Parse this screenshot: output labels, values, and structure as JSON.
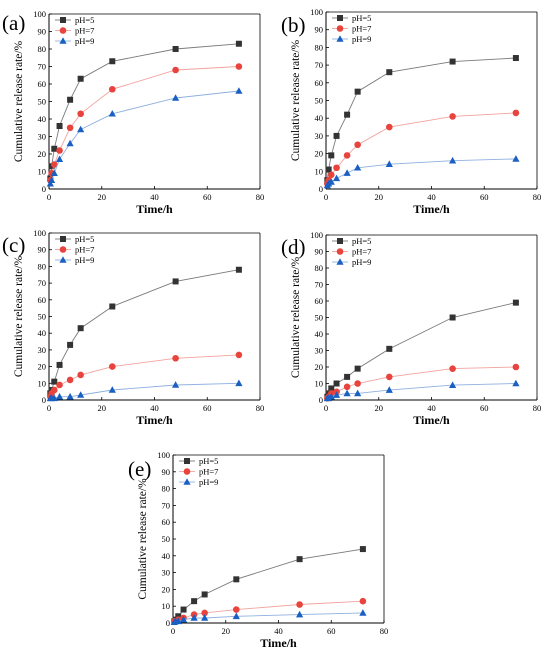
{
  "chart_data": [
    {
      "panel_label": "(a)",
      "type": "line",
      "xlabel": "Time/h",
      "ylabel": "Cumulative release rate/%",
      "xlim": [
        0,
        80
      ],
      "ylim": [
        0,
        100
      ],
      "xticks": [
        0,
        20,
        40,
        60,
        80
      ],
      "yticks": [
        0,
        10,
        20,
        30,
        40,
        50,
        60,
        70,
        80,
        90,
        100
      ],
      "grid": false,
      "legend_position": "top-left",
      "x": [
        0.5,
        1,
        2,
        4,
        8,
        12,
        24,
        48,
        72
      ],
      "series": [
        {
          "name": "pH=5",
          "marker": "square",
          "color": "#333333",
          "values": [
            6,
            13,
            23,
            36,
            51,
            63,
            73,
            80,
            83
          ]
        },
        {
          "name": "pH=7",
          "marker": "circle",
          "color": "#e8433c",
          "values": [
            5,
            9,
            14,
            22,
            35,
            43,
            57,
            68,
            70
          ]
        },
        {
          "name": "pH=9",
          "marker": "triangle",
          "color": "#1a5fc2",
          "values": [
            3,
            5,
            9,
            17,
            26,
            34,
            43,
            52,
            56
          ]
        }
      ]
    },
    {
      "panel_label": "(b)",
      "type": "line",
      "xlabel": "Time/h",
      "ylabel": "Cumulative release rate/%",
      "xlim": [
        0,
        80
      ],
      "ylim": [
        0,
        100
      ],
      "xticks": [
        0,
        20,
        40,
        60,
        80
      ],
      "yticks": [
        0,
        10,
        20,
        30,
        40,
        50,
        60,
        70,
        80,
        90,
        100
      ],
      "grid": false,
      "legend_position": "top-left",
      "x": [
        0.5,
        1,
        2,
        4,
        8,
        12,
        24,
        48,
        72
      ],
      "series": [
        {
          "name": "pH=5",
          "marker": "square",
          "color": "#333333",
          "values": [
            5,
            11,
            19,
            30,
            42,
            55,
            66,
            72,
            74
          ]
        },
        {
          "name": "pH=7",
          "marker": "circle",
          "color": "#e8433c",
          "values": [
            3,
            5,
            8,
            12,
            19,
            25,
            35,
            41,
            43
          ]
        },
        {
          "name": "pH=9",
          "marker": "triangle",
          "color": "#1a5fc2",
          "values": [
            2,
            3,
            4,
            6,
            9,
            12,
            14,
            16,
            17
          ]
        }
      ]
    },
    {
      "panel_label": "(c)",
      "type": "line",
      "xlabel": "Time/h",
      "ylabel": "Cumulative release rate/%",
      "xlim": [
        0,
        80
      ],
      "ylim": [
        0,
        100
      ],
      "xticks": [
        0,
        20,
        40,
        60,
        80
      ],
      "yticks": [
        0,
        10,
        20,
        30,
        40,
        50,
        60,
        70,
        80,
        90,
        100
      ],
      "grid": false,
      "legend_position": "top-left",
      "x": [
        0.5,
        1,
        2,
        4,
        8,
        12,
        24,
        48,
        72
      ],
      "series": [
        {
          "name": "pH=5",
          "marker": "square",
          "color": "#333333",
          "values": [
            4,
            6,
            11,
            21,
            33,
            43,
            56,
            71,
            78
          ]
        },
        {
          "name": "pH=7",
          "marker": "circle",
          "color": "#e8433c",
          "values": [
            2,
            4,
            6,
            9,
            12,
            15,
            20,
            25,
            27
          ]
        },
        {
          "name": "pH=9",
          "marker": "triangle",
          "color": "#1a5fc2",
          "values": [
            1,
            1,
            1,
            2,
            2,
            3,
            6,
            9,
            10
          ]
        }
      ]
    },
    {
      "panel_label": "(d)",
      "type": "line",
      "xlabel": "Time/h",
      "ylabel": "Cumulative release rate/%",
      "xlim": [
        0,
        80
      ],
      "ylim": [
        0,
        100
      ],
      "xticks": [
        0,
        20,
        40,
        60,
        80
      ],
      "yticks": [
        0,
        10,
        20,
        30,
        40,
        50,
        60,
        70,
        80,
        90,
        100
      ],
      "grid": false,
      "legend_position": "top-left",
      "x": [
        0.5,
        1,
        2,
        4,
        8,
        12,
        24,
        48,
        72
      ],
      "series": [
        {
          "name": "pH=5",
          "marker": "square",
          "color": "#333333",
          "values": [
            2,
            4,
            7,
            10,
            14,
            19,
            31,
            50,
            59
          ]
        },
        {
          "name": "pH=7",
          "marker": "circle",
          "color": "#e8433c",
          "values": [
            1,
            2,
            4,
            5,
            8,
            10,
            14,
            19,
            20
          ]
        },
        {
          "name": "pH=9",
          "marker": "triangle",
          "color": "#1a5fc2",
          "values": [
            1,
            1,
            2,
            3,
            4,
            4,
            6,
            9,
            10
          ]
        }
      ]
    },
    {
      "panel_label": "(e)",
      "type": "line",
      "xlabel": "Time/h",
      "ylabel": "Cumulative release rate/%",
      "xlim": [
        0,
        80
      ],
      "ylim": [
        0,
        100
      ],
      "xticks": [
        0,
        20,
        40,
        60,
        80
      ],
      "yticks": [
        0,
        10,
        20,
        30,
        40,
        50,
        60,
        70,
        80,
        90,
        100
      ],
      "grid": false,
      "legend_position": "top-left",
      "x": [
        0.5,
        1,
        2,
        4,
        8,
        12,
        24,
        48,
        72
      ],
      "series": [
        {
          "name": "pH=5",
          "marker": "square",
          "color": "#333333",
          "values": [
            1,
            2,
            4,
            8,
            13,
            17,
            26,
            38,
            44
          ]
        },
        {
          "name": "pH=7",
          "marker": "circle",
          "color": "#e8433c",
          "values": [
            1,
            1,
            2,
            3,
            5,
            6,
            8,
            11,
            13
          ]
        },
        {
          "name": "pH=9",
          "marker": "triangle",
          "color": "#1a5fc2",
          "values": [
            0.5,
            1,
            1,
            2,
            3,
            3,
            4,
            5,
            6
          ]
        }
      ]
    }
  ]
}
